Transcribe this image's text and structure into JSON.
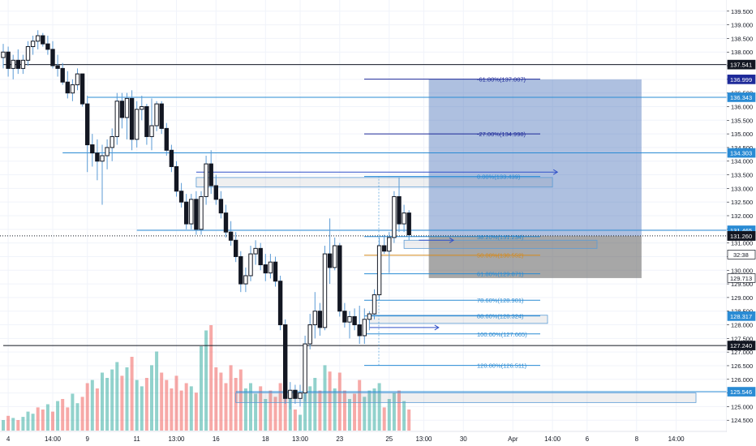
{
  "chart_data": {
    "type": "candlestick",
    "y_axis": {
      "ticks": [
        "124.500",
        "125.000",
        "125.500",
        "126.000",
        "126.500",
        "127.000",
        "127.500",
        "128.000",
        "128.500",
        "129.000",
        "129.500",
        "130.000",
        "130.500",
        "131.000",
        "131.500",
        "132.000",
        "132.500",
        "133.000",
        "133.500",
        "134.000",
        "134.500",
        "135.000",
        "135.500",
        "136.000",
        "136.500",
        "137.000",
        "137.500",
        "138.000",
        "138.500",
        "139.000",
        "139.500"
      ],
      "range": [
        124.15,
        139.85
      ]
    },
    "x_axis": {
      "ticks": [
        {
          "label": "4",
          "bar": 1
        },
        {
          "label": "14:00",
          "bar": 10
        },
        {
          "label": "9",
          "bar": 17
        },
        {
          "label": "11",
          "bar": 27
        },
        {
          "label": "13:00",
          "bar": 35
        },
        {
          "label": "16",
          "bar": 43
        },
        {
          "label": "18",
          "bar": 53
        },
        {
          "label": "13:00",
          "bar": 60
        },
        {
          "label": "23",
          "bar": 68
        },
        {
          "label": "25",
          "bar": 78
        },
        {
          "label": "13:00",
          "bar": 85
        },
        {
          "label": "30",
          "bar": 93
        },
        {
          "label": "Apr",
          "bar": 103
        },
        {
          "label": "14:00",
          "bar": 111
        },
        {
          "label": "6",
          "bar": 118
        },
        {
          "label": "8",
          "bar": 128
        },
        {
          "label": "14:00",
          "bar": 136
        }
      ]
    },
    "candles": [
      {
        "o": 137.8,
        "h": 138.3,
        "l": 137.4,
        "c": 138.0
      },
      {
        "o": 138.0,
        "h": 138.2,
        "l": 137.1,
        "c": 137.4
      },
      {
        "o": 137.4,
        "h": 137.9,
        "l": 137.0,
        "c": 137.7
      },
      {
        "o": 137.7,
        "h": 138.1,
        "l": 137.2,
        "c": 137.4
      },
      {
        "o": 137.4,
        "h": 137.9,
        "l": 137.2,
        "c": 137.7
      },
      {
        "o": 137.7,
        "h": 138.4,
        "l": 137.5,
        "c": 138.2
      },
      {
        "o": 138.2,
        "h": 138.6,
        "l": 137.9,
        "c": 138.4
      },
      {
        "o": 138.4,
        "h": 138.8,
        "l": 138.1,
        "c": 138.6
      },
      {
        "o": 138.6,
        "h": 138.7,
        "l": 138.2,
        "c": 138.3
      },
      {
        "o": 138.3,
        "h": 138.6,
        "l": 137.9,
        "c": 138.1
      },
      {
        "o": 138.1,
        "h": 138.4,
        "l": 137.4,
        "c": 137.5
      },
      {
        "o": 137.5,
        "h": 137.9,
        "l": 137.1,
        "c": 137.4
      },
      {
        "o": 137.4,
        "h": 137.6,
        "l": 136.8,
        "c": 136.9
      },
      {
        "o": 136.9,
        "h": 137.3,
        "l": 136.3,
        "c": 136.5
      },
      {
        "o": 136.5,
        "h": 137.0,
        "l": 136.2,
        "c": 136.8
      },
      {
        "o": 136.8,
        "h": 137.4,
        "l": 136.6,
        "c": 137.2
      },
      {
        "o": 137.2,
        "h": 137.2,
        "l": 136.0,
        "c": 136.1
      },
      {
        "o": 136.1,
        "h": 136.4,
        "l": 133.6,
        "c": 134.6
      },
      {
        "o": 134.6,
        "h": 135.0,
        "l": 133.8,
        "c": 134.3
      },
      {
        "o": 134.3,
        "h": 134.8,
        "l": 133.3,
        "c": 134.0
      },
      {
        "o": 134.0,
        "h": 134.6,
        "l": 132.4,
        "c": 134.2
      },
      {
        "o": 134.2,
        "h": 134.8,
        "l": 133.7,
        "c": 134.5
      },
      {
        "o": 134.5,
        "h": 135.2,
        "l": 134.0,
        "c": 134.9
      },
      {
        "o": 134.9,
        "h": 136.5,
        "l": 134.6,
        "c": 136.2
      },
      {
        "o": 136.2,
        "h": 136.5,
        "l": 135.2,
        "c": 135.6
      },
      {
        "o": 135.6,
        "h": 136.5,
        "l": 134.8,
        "c": 136.3
      },
      {
        "o": 136.3,
        "h": 136.6,
        "l": 134.4,
        "c": 134.8
      },
      {
        "o": 134.8,
        "h": 136.2,
        "l": 134.5,
        "c": 135.9
      },
      {
        "o": 135.9,
        "h": 136.4,
        "l": 135.5,
        "c": 136.0
      },
      {
        "o": 136.0,
        "h": 136.1,
        "l": 134.6,
        "c": 134.9
      },
      {
        "o": 134.9,
        "h": 136.3,
        "l": 134.4,
        "c": 135.3
      },
      {
        "o": 135.3,
        "h": 136.2,
        "l": 135.1,
        "c": 136.1
      },
      {
        "o": 136.1,
        "h": 136.2,
        "l": 135.0,
        "c": 135.2
      },
      {
        "o": 135.2,
        "h": 135.4,
        "l": 134.2,
        "c": 134.4
      },
      {
        "o": 134.4,
        "h": 134.6,
        "l": 133.6,
        "c": 133.8
      },
      {
        "o": 133.8,
        "h": 134.0,
        "l": 132.7,
        "c": 132.9
      },
      {
        "o": 132.9,
        "h": 133.2,
        "l": 132.3,
        "c": 132.5
      },
      {
        "o": 132.5,
        "h": 132.8,
        "l": 131.5,
        "c": 131.7
      },
      {
        "o": 131.7,
        "h": 132.8,
        "l": 131.5,
        "c": 132.6
      },
      {
        "o": 132.6,
        "h": 132.9,
        "l": 131.3,
        "c": 131.5
      },
      {
        "o": 131.5,
        "h": 132.9,
        "l": 131.3,
        "c": 132.7
      },
      {
        "o": 132.7,
        "h": 134.2,
        "l": 132.4,
        "c": 133.9
      },
      {
        "o": 133.9,
        "h": 134.4,
        "l": 132.8,
        "c": 133.1
      },
      {
        "o": 133.1,
        "h": 133.5,
        "l": 132.4,
        "c": 132.6
      },
      {
        "o": 132.6,
        "h": 132.9,
        "l": 131.9,
        "c": 132.1
      },
      {
        "o": 132.1,
        "h": 132.4,
        "l": 131.2,
        "c": 131.4
      },
      {
        "o": 131.4,
        "h": 131.8,
        "l": 130.9,
        "c": 131.1
      },
      {
        "o": 131.1,
        "h": 131.4,
        "l": 130.3,
        "c": 130.5
      },
      {
        "o": 130.5,
        "h": 130.7,
        "l": 129.2,
        "c": 129.5
      },
      {
        "o": 129.5,
        "h": 130.1,
        "l": 129.2,
        "c": 129.8
      },
      {
        "o": 129.8,
        "h": 130.9,
        "l": 129.6,
        "c": 130.6
      },
      {
        "o": 130.6,
        "h": 131.1,
        "l": 130.2,
        "c": 130.8
      },
      {
        "o": 130.8,
        "h": 131.0,
        "l": 130.0,
        "c": 130.2
      },
      {
        "o": 130.2,
        "h": 130.6,
        "l": 129.6,
        "c": 129.9
      },
      {
        "o": 129.9,
        "h": 130.6,
        "l": 129.7,
        "c": 130.3
      },
      {
        "o": 130.3,
        "h": 130.5,
        "l": 129.4,
        "c": 129.6
      },
      {
        "o": 129.6,
        "h": 129.8,
        "l": 127.8,
        "c": 128.0
      },
      {
        "o": 128.0,
        "h": 128.2,
        "l": 125.1,
        "c": 125.3
      },
      {
        "o": 125.3,
        "h": 125.9,
        "l": 124.9,
        "c": 125.6
      },
      {
        "o": 125.6,
        "h": 125.8,
        "l": 125.1,
        "c": 125.3
      },
      {
        "o": 125.3,
        "h": 125.8,
        "l": 125.0,
        "c": 125.5
      },
      {
        "o": 125.5,
        "h": 127.6,
        "l": 125.2,
        "c": 127.3
      },
      {
        "o": 127.3,
        "h": 128.4,
        "l": 127.1,
        "c": 128.0
      },
      {
        "o": 128.0,
        "h": 129.2,
        "l": 127.5,
        "c": 128.5
      },
      {
        "o": 128.5,
        "h": 128.8,
        "l": 127.6,
        "c": 127.9
      },
      {
        "o": 127.9,
        "h": 130.9,
        "l": 127.8,
        "c": 130.6
      },
      {
        "o": 130.6,
        "h": 131.9,
        "l": 129.5,
        "c": 130.1
      },
      {
        "o": 130.1,
        "h": 131.2,
        "l": 130.0,
        "c": 130.9
      },
      {
        "o": 130.9,
        "h": 131.0,
        "l": 128.3,
        "c": 128.5
      },
      {
        "o": 128.5,
        "h": 128.8,
        "l": 127.9,
        "c": 128.1
      },
      {
        "o": 128.1,
        "h": 128.5,
        "l": 127.5,
        "c": 128.3
      },
      {
        "o": 128.3,
        "h": 128.6,
        "l": 127.8,
        "c": 128.0
      },
      {
        "o": 128.0,
        "h": 128.7,
        "l": 127.3,
        "c": 127.6
      },
      {
        "o": 127.6,
        "h": 128.6,
        "l": 127.3,
        "c": 128.2
      },
      {
        "o": 128.2,
        "h": 128.5,
        "l": 127.8,
        "c": 128.4
      },
      {
        "o": 128.4,
        "h": 129.3,
        "l": 128.2,
        "c": 129.1
      },
      {
        "o": 129.1,
        "h": 131.2,
        "l": 128.9,
        "c": 130.9
      },
      {
        "o": 130.9,
        "h": 131.3,
        "l": 130.6,
        "c": 130.7
      },
      {
        "o": 130.7,
        "h": 131.4,
        "l": 129.9,
        "c": 131.2
      },
      {
        "o": 131.2,
        "h": 132.9,
        "l": 131.0,
        "c": 132.7
      },
      {
        "o": 132.7,
        "h": 133.4,
        "l": 131.4,
        "c": 131.7
      },
      {
        "o": 131.7,
        "h": 132.4,
        "l": 131.4,
        "c": 132.1
      },
      {
        "o": 132.1,
        "h": 132.2,
        "l": 131.1,
        "c": 131.3
      }
    ],
    "volume": [
      {
        "v": 0.1,
        "up": true
      },
      {
        "v": 0.14,
        "up": false
      },
      {
        "v": 0.12,
        "up": true
      },
      {
        "v": 0.1,
        "up": false
      },
      {
        "v": 0.13,
        "up": true
      },
      {
        "v": 0.18,
        "up": true
      },
      {
        "v": 0.16,
        "up": true
      },
      {
        "v": 0.22,
        "up": false
      },
      {
        "v": 0.2,
        "up": false
      },
      {
        "v": 0.25,
        "up": true
      },
      {
        "v": 0.18,
        "up": false
      },
      {
        "v": 0.28,
        "up": true
      },
      {
        "v": 0.3,
        "up": false
      },
      {
        "v": 0.22,
        "up": false
      },
      {
        "v": 0.35,
        "up": true
      },
      {
        "v": 0.26,
        "up": true
      },
      {
        "v": 0.32,
        "up": false
      },
      {
        "v": 0.45,
        "up": false
      },
      {
        "v": 0.48,
        "up": true
      },
      {
        "v": 0.4,
        "up": false
      },
      {
        "v": 0.55,
        "up": true
      },
      {
        "v": 0.5,
        "up": true
      },
      {
        "v": 0.58,
        "up": true
      },
      {
        "v": 0.65,
        "up": true
      },
      {
        "v": 0.52,
        "up": false
      },
      {
        "v": 0.6,
        "up": true
      },
      {
        "v": 0.7,
        "up": false
      },
      {
        "v": 0.48,
        "up": true
      },
      {
        "v": 0.42,
        "up": true
      },
      {
        "v": 0.5,
        "up": false
      },
      {
        "v": 0.62,
        "up": true
      },
      {
        "v": 0.75,
        "up": true
      },
      {
        "v": 0.55,
        "up": false
      },
      {
        "v": 0.48,
        "up": false
      },
      {
        "v": 0.4,
        "up": false
      },
      {
        "v": 0.52,
        "up": false
      },
      {
        "v": 0.38,
        "up": false
      },
      {
        "v": 0.45,
        "up": false
      },
      {
        "v": 0.42,
        "up": true
      },
      {
        "v": 0.36,
        "up": false
      },
      {
        "v": 0.8,
        "up": true
      },
      {
        "v": 0.95,
        "up": true
      },
      {
        "v": 1.0,
        "up": false
      },
      {
        "v": 0.6,
        "up": false
      },
      {
        "v": 0.55,
        "up": false
      },
      {
        "v": 0.45,
        "up": false
      },
      {
        "v": 0.62,
        "up": false
      },
      {
        "v": 0.5,
        "up": false
      },
      {
        "v": 0.58,
        "up": false
      },
      {
        "v": 0.4,
        "up": true
      },
      {
        "v": 0.45,
        "up": true
      },
      {
        "v": 0.35,
        "up": true
      },
      {
        "v": 0.42,
        "up": false
      },
      {
        "v": 0.3,
        "up": true
      },
      {
        "v": 0.38,
        "up": false
      },
      {
        "v": 0.32,
        "up": false
      },
      {
        "v": 0.45,
        "up": false
      },
      {
        "v": 0.7,
        "up": false
      },
      {
        "v": 0.3,
        "up": true
      },
      {
        "v": 0.2,
        "up": false
      },
      {
        "v": 0.15,
        "up": true
      },
      {
        "v": 0.35,
        "up": true
      },
      {
        "v": 0.42,
        "up": true
      },
      {
        "v": 0.5,
        "up": true
      },
      {
        "v": 0.38,
        "up": false
      },
      {
        "v": 0.62,
        "up": true
      },
      {
        "v": 0.56,
        "up": false
      },
      {
        "v": 0.4,
        "up": true
      },
      {
        "v": 0.55,
        "up": false
      },
      {
        "v": 0.38,
        "up": false
      },
      {
        "v": 0.3,
        "up": true
      },
      {
        "v": 0.35,
        "up": false
      },
      {
        "v": 0.48,
        "up": false
      },
      {
        "v": 0.32,
        "up": true
      },
      {
        "v": 0.38,
        "up": true
      },
      {
        "v": 0.4,
        "up": true
      },
      {
        "v": 0.45,
        "up": true
      },
      {
        "v": 0.22,
        "up": false
      },
      {
        "v": 0.3,
        "up": true
      },
      {
        "v": 0.36,
        "up": true
      },
      {
        "v": 0.38,
        "up": false
      },
      {
        "v": 0.28,
        "up": true
      },
      {
        "v": 0.2,
        "up": false
      }
    ],
    "fib_levels": [
      {
        "label": "-61.80%(137.007)",
        "price": 137.007,
        "color": "#1e2a99"
      },
      {
        "label": "-27.00%(134.998)",
        "price": 134.998,
        "color": "#1e2a99"
      },
      {
        "label": "0.00%(133.439)",
        "price": 133.439,
        "color": "#2a8bd4"
      },
      {
        "label": "38.20%(131.234)",
        "price": 131.234,
        "color": "#2a8bd4"
      },
      {
        "label": "50.00%(130.552)",
        "price": 130.552,
        "color": "#d48a1e"
      },
      {
        "label": "61.80%(129.871)",
        "price": 129.871,
        "color": "#2a8bd4"
      },
      {
        "label": "78.60%(128.901)",
        "price": 128.901,
        "color": "#2a8bd4"
      },
      {
        "label": "88.60%(128.324)",
        "price": 128.324,
        "color": "#2a8bd4"
      },
      {
        "label": "100.00%(127.665)",
        "price": 127.665,
        "color": "#2a8bd4"
      },
      {
        "label": "120.00%(126.511)",
        "price": 126.511,
        "color": "#2a8bd4"
      }
    ],
    "horizontal_lines": [
      {
        "price": 137.541,
        "color": "#131722",
        "label": "137.541",
        "start_bar": 0
      },
      {
        "price": 136.343,
        "color": "#2a8bd4",
        "label": "136.343",
        "start_bar": 17
      },
      {
        "price": 134.303,
        "color": "#2a8bd4",
        "label": "134.303",
        "start_bar": 12
      },
      {
        "price": 131.465,
        "color": "#2a8bd4",
        "label": "131.465",
        "start_bar": 27
      },
      {
        "price": 127.24,
        "color": "#131722",
        "label": "127.240",
        "start_bar": 0
      },
      {
        "price": 125.546,
        "color": "#2a8bd4",
        "label": "125.546",
        "start_bar": 47
      }
    ],
    "current_price": {
      "price": 131.26,
      "label": "131.260",
      "countdown": "32:38"
    },
    "price_tags": [
      {
        "price": 136.999,
        "label": "136.999",
        "bg": "#1e2a99"
      },
      {
        "price": 131.258,
        "label": "131.258",
        "bg": "#ffffff"
      },
      {
        "price": 129.713,
        "label": "129.713",
        "bg": "#ffffff"
      },
      {
        "price": 128.317,
        "label": "128.317",
        "bg": "#2a8bd4"
      }
    ],
    "position": {
      "start_bar": 86,
      "end_bar": 129,
      "entry": 131.26,
      "target": 136.999,
      "stop": 129.713,
      "profit_color": "#3f68b5",
      "loss_color": "#505050"
    },
    "zones": [
      {
        "start_bar": 39,
        "end_bar": 111,
        "top": 133.4,
        "bottom": 133.05
      },
      {
        "start_bar": 81,
        "end_bar": 120,
        "top": 131.1,
        "bottom": 130.8
      },
      {
        "start_bar": 74,
        "end_bar": 110,
        "top": 128.35,
        "bottom": 128.05
      },
      {
        "start_bar": 47,
        "end_bar": 140,
        "top": 125.5,
        "bottom": 125.15
      }
    ],
    "arrows": [
      {
        "start_bar": 39,
        "end_bar": 112,
        "price": 133.6
      },
      {
        "start_bar": 84,
        "end_bar": 91,
        "price": 131.1
      },
      {
        "start_bar": 74,
        "end_bar": 88,
        "price": 127.9
      }
    ],
    "grid": true
  }
}
